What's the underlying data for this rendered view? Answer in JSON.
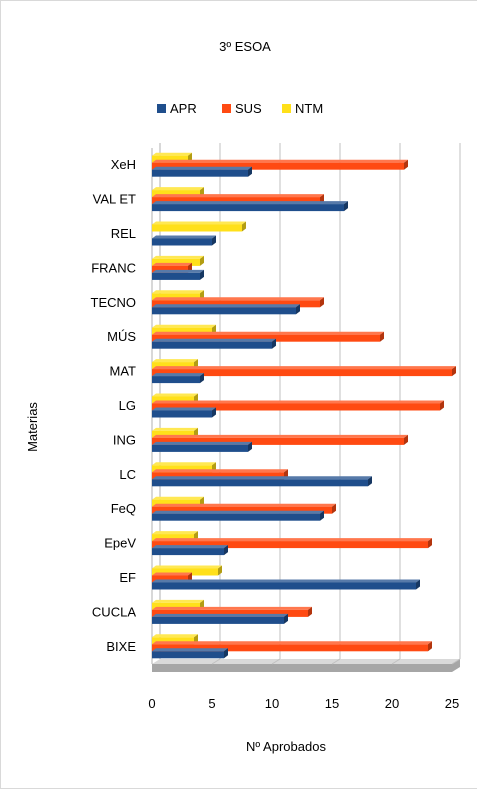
{
  "chart_data": {
    "type": "bar",
    "orientation": "horizontal",
    "title": "3º ESOA",
    "xlabel": "Nº Aprobados",
    "ylabel": "Materias",
    "xlim": [
      0,
      25
    ],
    "x_ticks": [
      "0",
      "5",
      "10",
      "15",
      "20",
      "25"
    ],
    "grid": true,
    "legend_position": "top",
    "categories": [
      "XeH",
      "VAL ET",
      "REL",
      "FRANC",
      "TECNO",
      "MÚS",
      "MAT",
      "LG",
      "ING",
      "LC",
      "FeQ",
      "EpeV",
      "EF",
      "CUCLA",
      "BIXE"
    ],
    "series": [
      {
        "name": "APR",
        "color": "#1f4e8c",
        "values": [
          8,
          16,
          5,
          4,
          12,
          10,
          4,
          5,
          8,
          18,
          14,
          6,
          22,
          11,
          6
        ]
      },
      {
        "name": "SUS",
        "color": "#ff4a12",
        "values": [
          21,
          14,
          0,
          3,
          14,
          19,
          25,
          24,
          21,
          11,
          15,
          23,
          3,
          13,
          23
        ]
      },
      {
        "name": "NTM",
        "color": "#ffe01a",
        "values": [
          3,
          4,
          7.5,
          4,
          4,
          5,
          3.5,
          3.5,
          3.5,
          5,
          4,
          3.5,
          5.5,
          4,
          3.5
        ]
      }
    ]
  }
}
